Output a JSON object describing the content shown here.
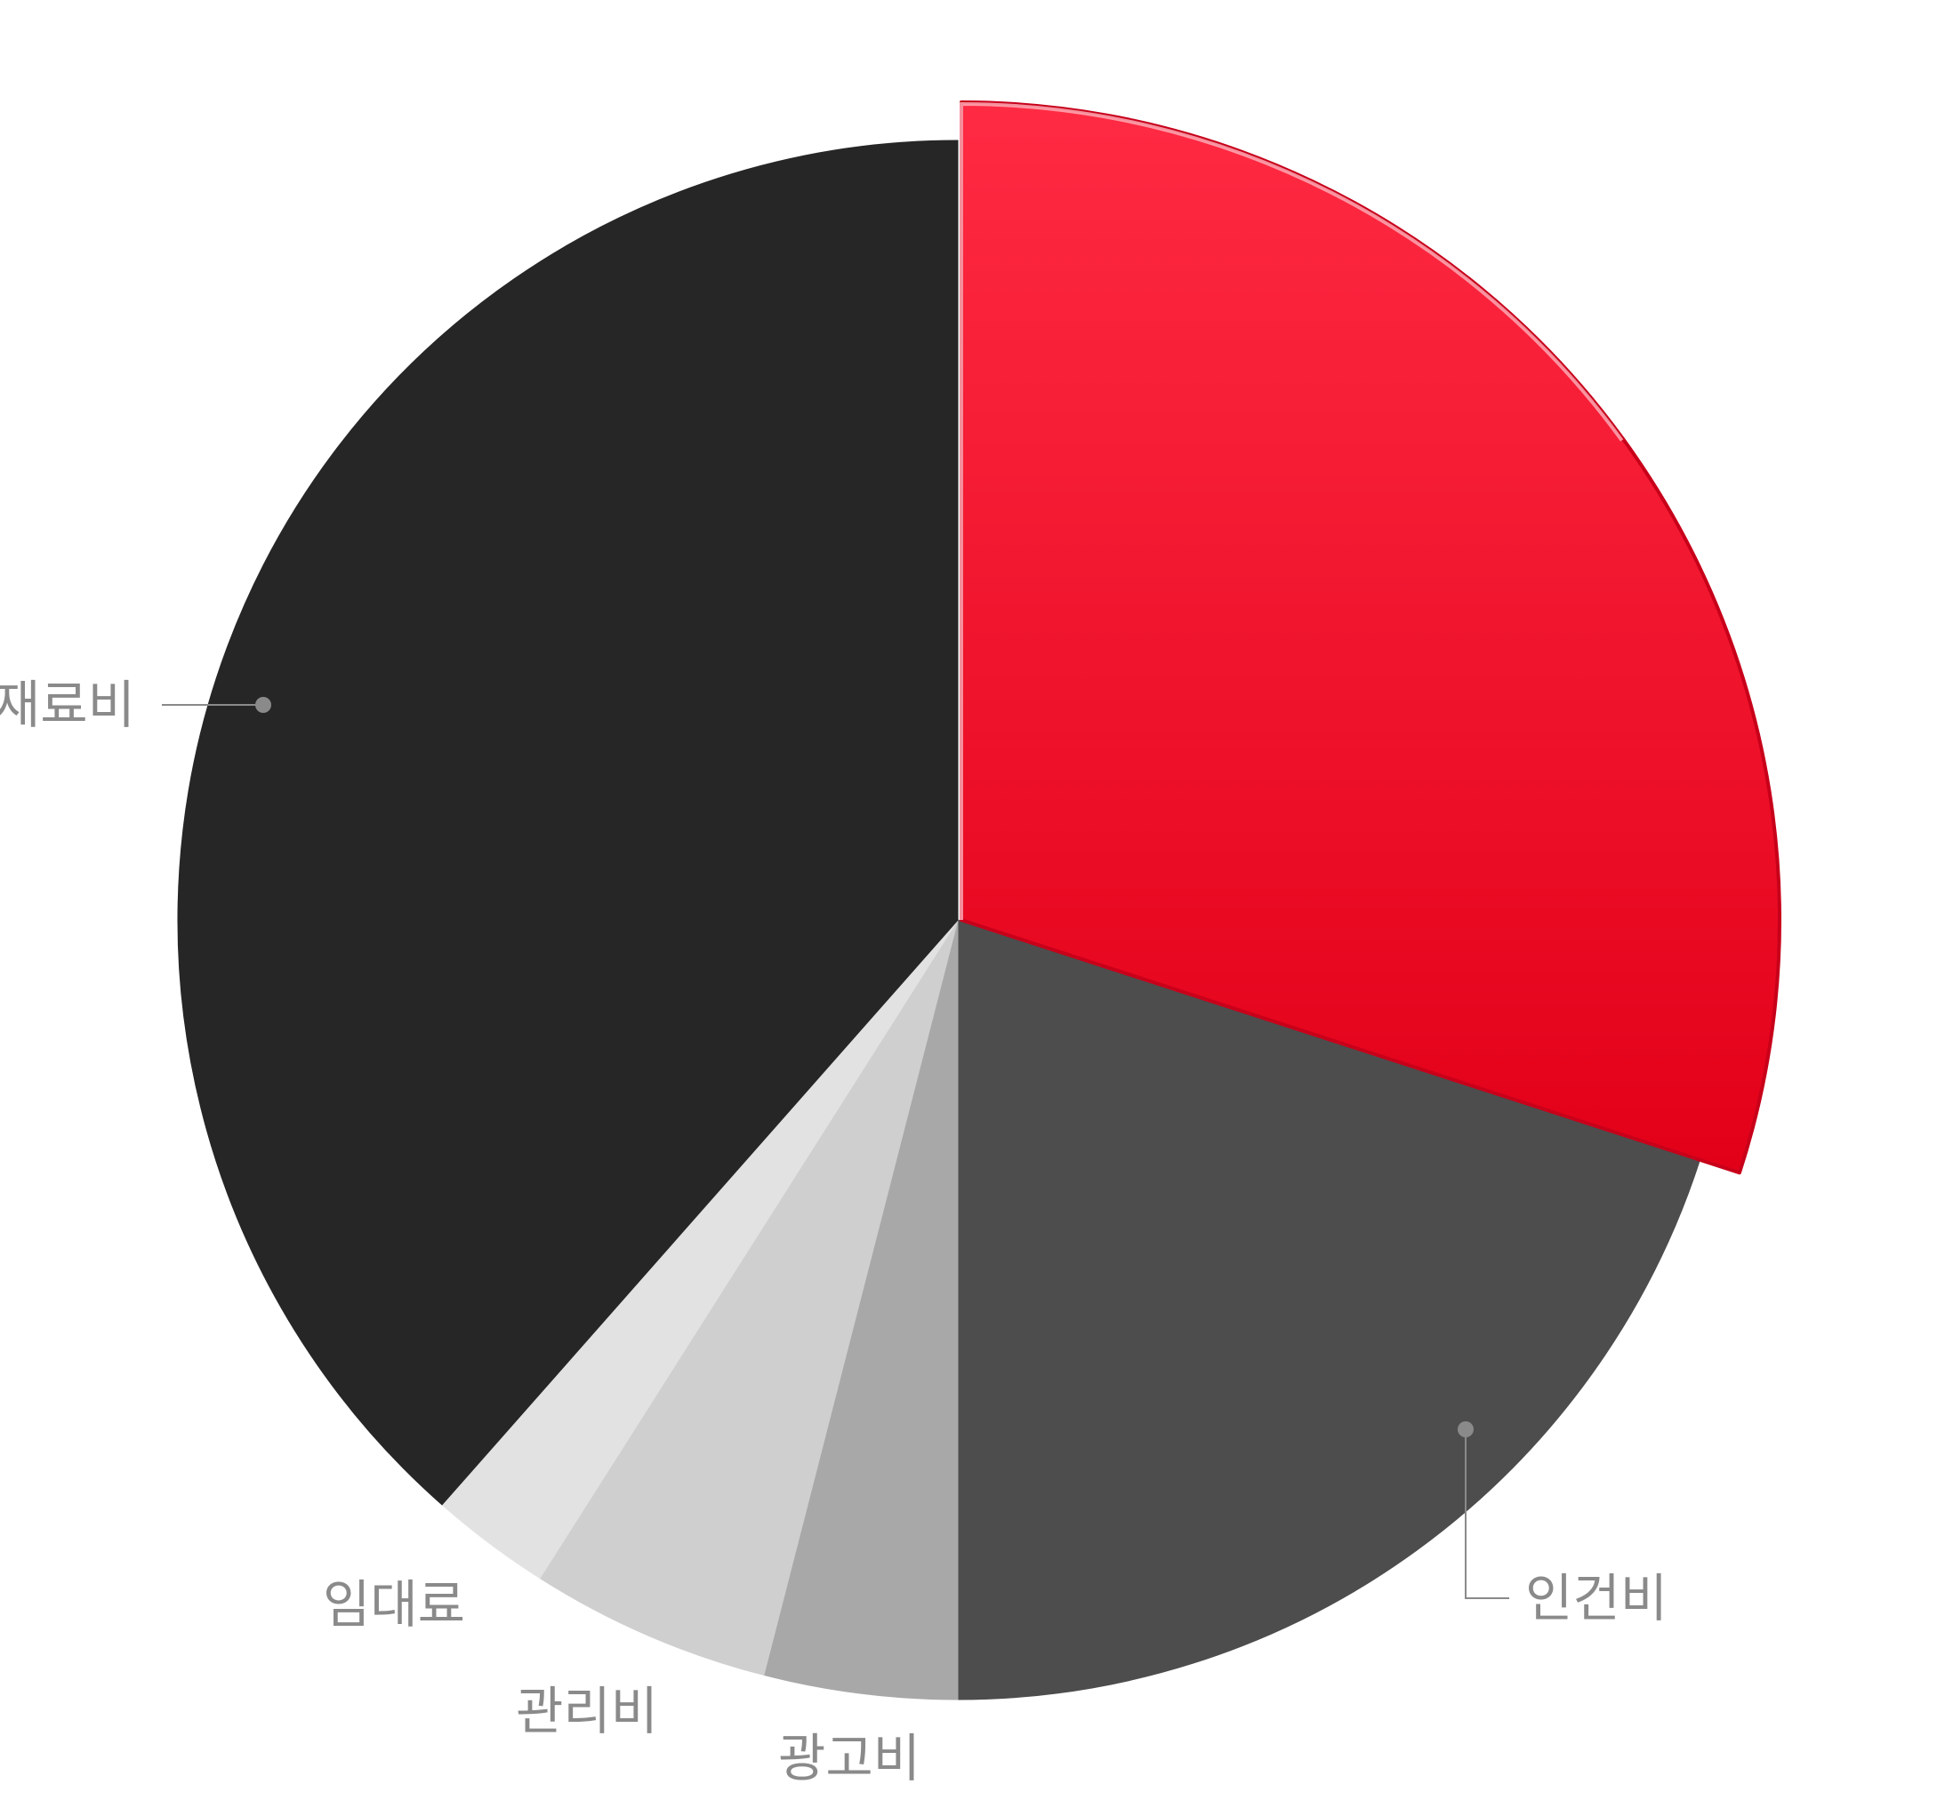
{
  "chart_data": {
    "type": "pie",
    "title": "",
    "start_angle_deg": 0,
    "direction": "clockwise",
    "slices": [
      {
        "label": "",
        "value": 30,
        "color": "#ee1530",
        "gradient_top": "#ff2a43",
        "gradient_bottom": "#e20018",
        "exploded": true
      },
      {
        "label": "인건비",
        "value": 20,
        "color": "#4d4d4d",
        "exploded": false
      },
      {
        "label": "광고비",
        "value": 4,
        "color": "#a8a8a8",
        "exploded": false
      },
      {
        "label": "관리비",
        "value": 5,
        "color": "#cfcfcf",
        "exploded": false
      },
      {
        "label": "임대료",
        "value": 2.5,
        "color": "#e2e2e2",
        "exploded": false
      },
      {
        "label": "재료비",
        "value": 38.5,
        "color": "#262626",
        "exploded": false
      }
    ],
    "legend": "none",
    "label_color": "#8a8a8a",
    "leader_color": "#8a8a8a"
  }
}
